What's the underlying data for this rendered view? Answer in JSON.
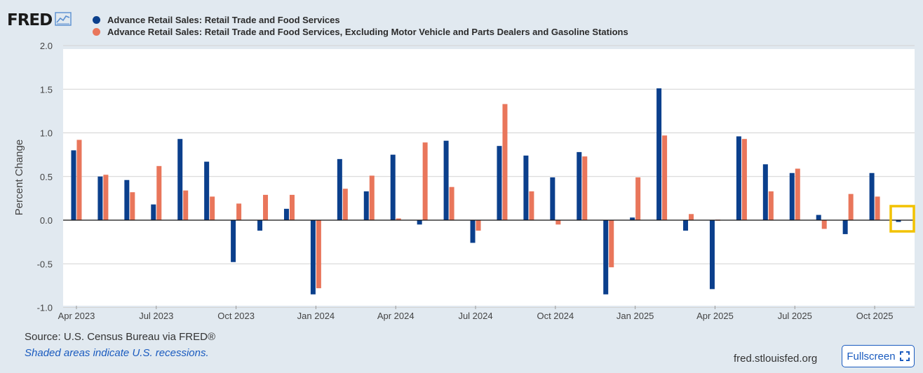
{
  "brand": {
    "logo_text": "FRED"
  },
  "colors": {
    "series1": "#0b3f8c",
    "series2": "#e9765b",
    "accent": "#1a5bbf",
    "highlight": "#f2c200"
  },
  "chart_data": {
    "type": "bar",
    "ylabel": "Percent Change",
    "ylim": [
      -1.0,
      2.0
    ],
    "yticks": [
      "2.0",
      "1.5",
      "1.0",
      "0.5",
      "0.0",
      "-0.5",
      "-1.0"
    ],
    "ytick_values": [
      2.0,
      1.5,
      1.0,
      0.5,
      0.0,
      -0.5,
      -1.0
    ],
    "xtick_labels": [
      "Apr 2023",
      "Jul 2023",
      "Oct 2023",
      "Jan 2024",
      "Apr 2024",
      "Jul 2024",
      "Oct 2024",
      "Jan 2025",
      "Apr 2025",
      "Jul 2025",
      "Oct 2025"
    ],
    "xtick_indices": [
      0,
      3,
      6,
      9,
      12,
      15,
      18,
      21,
      24,
      27,
      30
    ],
    "categories": [
      "2023-04",
      "2023-05",
      "2023-06",
      "2023-07",
      "2023-08",
      "2023-09",
      "2023-10",
      "2023-11",
      "2023-12",
      "2024-01",
      "2024-02",
      "2024-03",
      "2024-04",
      "2024-05",
      "2024-06",
      "2024-07",
      "2024-08",
      "2024-09",
      "2024-10",
      "2024-11",
      "2024-12",
      "2025-01",
      "2025-02",
      "2025-03",
      "2025-04",
      "2025-05",
      "2025-06",
      "2025-07",
      "2025-08",
      "2025-09",
      "2025-10",
      "2025-11"
    ],
    "series": [
      {
        "name": "Advance Retail Sales: Retail Trade and Food Services",
        "color": "#0b3f8c",
        "values": [
          0.8,
          0.5,
          0.46,
          0.18,
          0.93,
          0.67,
          -0.48,
          -0.12,
          0.13,
          -0.85,
          0.7,
          0.33,
          0.75,
          -0.05,
          0.91,
          -0.26,
          0.85,
          0.74,
          0.49,
          0.78,
          -0.85,
          0.03,
          1.51,
          -0.12,
          -0.79,
          0.96,
          0.64,
          0.54,
          0.06,
          -0.16,
          0.54,
          -0.02
        ]
      },
      {
        "name": "Advance Retail Sales: Retail Trade and Food Services, Excluding Motor Vehicle and Parts Dealers and Gasoline Stations",
        "color": "#e9765b",
        "values": [
          0.92,
          0.52,
          0.32,
          0.62,
          0.34,
          0.27,
          0.19,
          0.29,
          0.29,
          -0.78,
          0.36,
          0.51,
          0.02,
          0.89,
          0.38,
          -0.12,
          1.33,
          0.33,
          -0.05,
          0.73,
          -0.54,
          0.49,
          0.97,
          0.07,
          0.0,
          0.93,
          0.33,
          0.59,
          -0.1,
          0.3,
          0.27,
          null
        ]
      }
    ]
  },
  "footer": {
    "source": "Source: U.S. Census Bureau via FRED®",
    "shaded_note": "Shaded areas indicate U.S. recessions.",
    "site": "fred.stlouisfed.org",
    "fullscreen_label": "Fullscreen"
  }
}
